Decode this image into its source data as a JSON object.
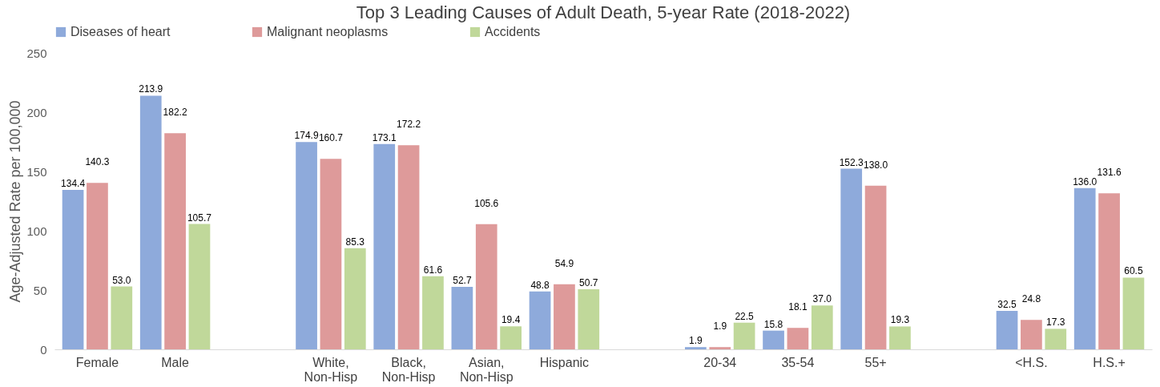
{
  "chart_data": {
    "type": "bar",
    "title": "Top 3 Leading Causes of Adult Death, 5-year Rate (2018-2022)",
    "ylabel": "Age-Adjusted Rate per 100,000",
    "categories": [
      "Female",
      "Male",
      null,
      "White,\nNon-Hisp",
      "Black,\nNon-Hisp",
      "Asian,\nNon-Hisp",
      "Hispanic",
      null,
      "20-34",
      "35-54",
      "55+",
      null,
      "<H.S.",
      "H.S.+"
    ],
    "series": [
      {
        "name": "Diseases of heart",
        "color": "#8eaadb",
        "values": [
          134.4,
          213.9,
          null,
          174.9,
          173.1,
          52.7,
          48.8,
          null,
          1.9,
          15.8,
          152.3,
          null,
          32.5,
          136.0
        ],
        "value_labels": [
          "134.4",
          "213.9",
          null,
          "174.9",
          "173.1",
          "52.7",
          "48.8",
          null,
          "1.9",
          "15.8",
          "152.3",
          null,
          "32.5",
          "136.0"
        ]
      },
      {
        "name": "Malignant neoplasms",
        "color": "#de9a9a",
        "values": [
          140.3,
          182.2,
          null,
          160.7,
          172.2,
          105.6,
          54.9,
          null,
          1.9,
          18.1,
          138.0,
          null,
          24.8,
          131.6
        ],
        "value_labels": [
          "140.3",
          "182.2",
          null,
          "160.7",
          "172.2",
          "105.6",
          "54.9",
          null,
          "1.9",
          "18.1",
          "138.0",
          null,
          "24.8",
          "131.6"
        ]
      },
      {
        "name": "Accidents",
        "color": "#c0d89a",
        "values": [
          53.0,
          105.7,
          null,
          85.3,
          61.6,
          19.4,
          50.7,
          null,
          22.5,
          37.0,
          19.3,
          null,
          17.3,
          60.5
        ],
        "value_labels": [
          "53.0",
          "105.7",
          null,
          "85.3",
          "61.6",
          "19.4",
          "50.7",
          null,
          "22.5",
          "37.0",
          "19.3",
          null,
          "17.3",
          "60.5"
        ]
      }
    ],
    "ylim": [
      0,
      250
    ],
    "yticks": [
      0,
      50,
      100,
      150,
      200,
      250
    ],
    "grid": false,
    "legend": "top"
  }
}
